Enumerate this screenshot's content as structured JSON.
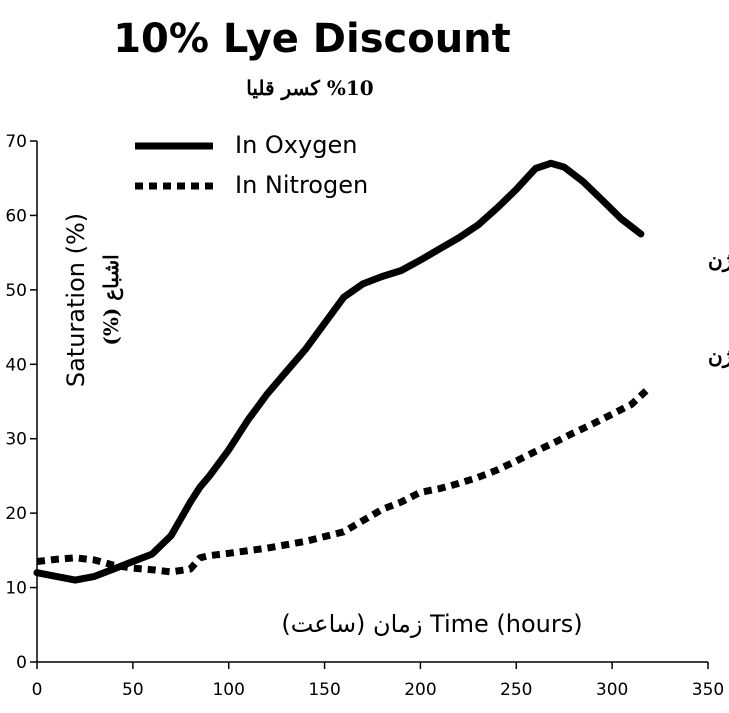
{
  "chart_data": {
    "type": "line",
    "title": "10% Lye Discount",
    "subtitle": "%10 کسر قلیا",
    "xlabel": "زمان (ساعت) Time (hours)",
    "ylabel": "Saturation (%)",
    "ylabel_secondary": "اشباع (%)",
    "xlim": [
      0,
      350
    ],
    "ylim": [
      0,
      70
    ],
    "x_ticks": [
      0,
      50,
      100,
      150,
      200,
      250,
      300,
      350
    ],
    "y_ticks": [
      0,
      10,
      20,
      30,
      40,
      50,
      60,
      70
    ],
    "grid": false,
    "legend_position": "top-left",
    "series": [
      {
        "name": "In Oxygen",
        "style": "solid",
        "end_label": "در اکسیژن",
        "x": [
          0,
          10,
          20,
          30,
          40,
          50,
          60,
          70,
          80,
          85,
          90,
          100,
          110,
          120,
          130,
          140,
          150,
          160,
          170,
          180,
          190,
          200,
          210,
          220,
          230,
          240,
          250,
          260,
          268,
          275,
          285,
          295,
          305,
          315
        ],
        "y": [
          12,
          11.5,
          11,
          11.5,
          12.5,
          13.5,
          14.5,
          17,
          21.5,
          23.5,
          25,
          28.5,
          32.5,
          36,
          39,
          42,
          45.5,
          49,
          50.8,
          51.8,
          52.6,
          54,
          55.5,
          57,
          58.7,
          61,
          63.5,
          66.3,
          67,
          66.5,
          64.5,
          62,
          59.5,
          57.5
        ]
      },
      {
        "name": "In Nitrogen",
        "style": "dotted",
        "end_label": "در نیتروژن",
        "x": [
          0,
          10,
          20,
          30,
          40,
          50,
          60,
          70,
          80,
          85,
          90,
          100,
          120,
          140,
          160,
          170,
          180,
          190,
          200,
          210,
          220,
          230,
          240,
          250,
          260,
          270,
          280,
          290,
          300,
          310,
          318
        ],
        "y": [
          13.5,
          13.8,
          14,
          13.7,
          13,
          12.6,
          12.4,
          12.1,
          12.5,
          14,
          14.3,
          14.6,
          15.3,
          16.2,
          17.5,
          19,
          20.5,
          21.5,
          22.8,
          23.3,
          24,
          24.8,
          25.8,
          27,
          28.3,
          29.5,
          30.8,
          32,
          33.3,
          34.6,
          36.5
        ]
      }
    ]
  }
}
